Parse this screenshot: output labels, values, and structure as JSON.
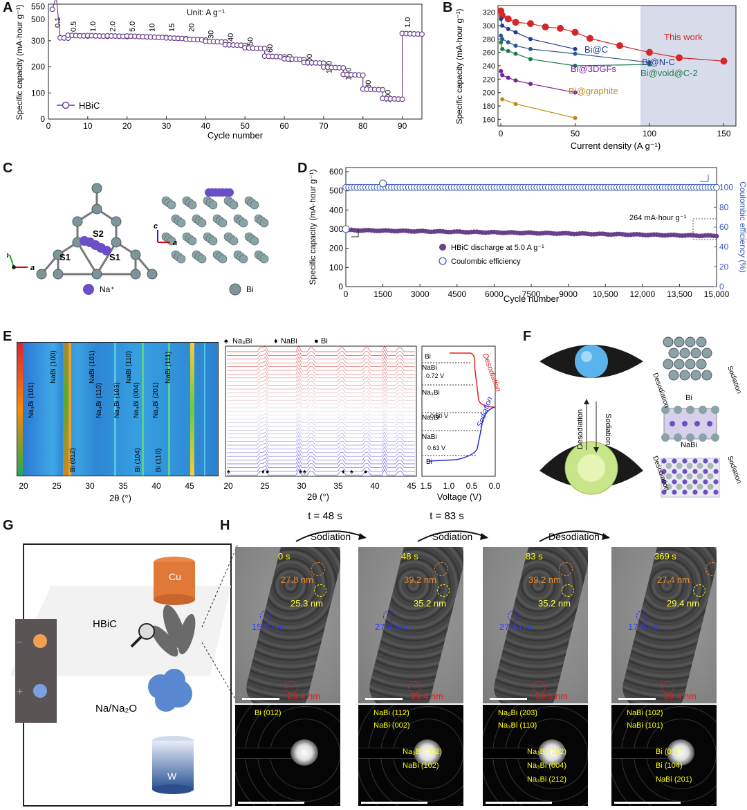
{
  "panels": {
    "A": {
      "label": "A",
      "unit": "Unit: A g⁻¹",
      "ylabel": "Specific capacity (mA·hour g⁻¹)",
      "xlabel": "Cycle number",
      "legend": "HBiC",
      "rates": [
        "0.1",
        "0.5",
        "1.0",
        "2.0",
        "5.0",
        "10",
        "15",
        "20",
        "30",
        "40",
        "50",
        "60",
        "80",
        "100",
        "120",
        "150",
        "180",
        "200",
        "1.0"
      ],
      "yticks": [
        "0",
        "100",
        "200",
        "300",
        "500",
        "550"
      ],
      "xticks": [
        "0",
        "10",
        "20",
        "30",
        "40",
        "50",
        "60",
        "70",
        "80",
        "90"
      ]
    },
    "B": {
      "label": "B",
      "ylabel": "Specific capacity (mA·hour g⁻¹)",
      "xlabel": "Current density (A g⁻¹)",
      "xticks": [
        "0",
        "50",
        "100",
        "150"
      ],
      "yticks": [
        "160",
        "180",
        "200",
        "220",
        "240",
        "260",
        "280",
        "300",
        "320"
      ],
      "series_labels": [
        "This work",
        "Bi@C",
        "Bi@N-C",
        "Bi@3DGFs",
        "Bi@void@C-2",
        "Bi@graphite"
      ]
    },
    "C": {
      "label": "C",
      "site_labels": [
        "S2",
        "S1",
        "S1"
      ],
      "legend_na": "Na⁺",
      "legend_bi": "Bi",
      "axis_b": "b",
      "axis_a": "a",
      "axis_c": "c",
      "axis_a2": "a"
    },
    "D": {
      "label": "D",
      "ylabel": "Specific capacity (mA·hour g⁻¹)",
      "y2label": "Coulombic efficiency (%)",
      "xlabel": "Cycle number",
      "annotation": "264 mA·hour g⁻¹",
      "legend1": "HBiC discharge at 5.0 A g⁻¹",
      "legend2": "Coulombic efficiency",
      "xticks": [
        "0",
        "1500",
        "3000",
        "4500",
        "6000",
        "7500",
        "9000",
        "10,500",
        "12,000",
        "13,500",
        "15,000"
      ],
      "yticks": [
        "0",
        "100",
        "200",
        "300",
        "400",
        "500",
        "600"
      ],
      "y2ticks": [
        "0",
        "20",
        "40",
        "60",
        "80",
        "100"
      ]
    },
    "E": {
      "label": "E",
      "map_labels": [
        "Na₃Bi (101)",
        "NaBi (100)",
        "NaBi (101)",
        "Na₃Bi (110)",
        "Na₃Bi (103)",
        "NaBi (110)",
        "Na₃Bi (004)",
        "Na₃Bi (201)",
        "NaBi (111)",
        "Bi (012)",
        "Bi (104)",
        "Bi (110)"
      ],
      "legend_top": [
        "Na₃Bi",
        "NaBi",
        "Bi"
      ],
      "xticks_map": [
        "20",
        "25",
        "30",
        "35",
        "40",
        "45"
      ],
      "xticks_xrd": [
        "20",
        "25",
        "30",
        "35",
        "40",
        "45"
      ],
      "xticks_v": [
        "1.5",
        "1.0",
        "0.5",
        "0.0"
      ],
      "xlabel_2theta": "2θ (°)",
      "xlabel_v": "Voltage (V)",
      "phase_labels": [
        "Bi",
        "NaBi",
        "Na₃Bi",
        "Na₃Bi",
        "NaBi",
        "Bi"
      ],
      "voltages": [
        "0.72 V",
        "0.50 V",
        "0.63 V"
      ],
      "desodiation": "Desodiation",
      "sodiation": "Sodiation"
    },
    "F": {
      "label": "F",
      "desodiation": "Desodiation",
      "sodiation": "Sodiation",
      "bi": "Bi",
      "nabi": "NaBi"
    },
    "G": {
      "label": "G",
      "cu": "Cu",
      "hbic": "HBiC",
      "na": "Na/Na₂O",
      "w": "W",
      "minus": "−",
      "plus": "+"
    },
    "H": {
      "label": "H",
      "arrows": [
        {
          "t": "t = 48 s",
          "label": "Sodiation"
        },
        {
          "t": "t = 83 s",
          "label": "Sodiation"
        },
        {
          "t": "",
          "label": "Desodiation"
        }
      ],
      "frames": [
        {
          "time": "0 s",
          "orange": "27.8 nm",
          "yellow": "25.3 nm",
          "blue": "15.7 nm",
          "red": "29.4 nm",
          "saed": [
            "Bi (012)"
          ]
        },
        {
          "time": "48 s",
          "orange": "39.2 nm",
          "yellow": "35.2 nm",
          "blue": "27.4 nm",
          "red": "29.4 nm",
          "saed": [
            "NaBi (112)",
            "NaBi (002)",
            "Na₃Bi (002)",
            "NaBi (102)"
          ]
        },
        {
          "time": "83 s",
          "orange": "39.2 nm",
          "yellow": "35.2 nm",
          "blue": "27.4 nm",
          "red": "33.3 nm",
          "saed": [
            "Na₃Bi (203)",
            "Na₃Bi (110)",
            "Na₃Bi (102)",
            "Na₃Bi (004)",
            "Na₃Bi (212)"
          ]
        },
        {
          "time": "369 s",
          "orange": "27.4 nm",
          "yellow": "29.4 nm",
          "blue": "17.6 nm",
          "red": "29.4 nm",
          "saed": [
            "NaBi (102)",
            "NaBi (101)",
            "Bi (012)",
            "Bi (104)",
            "NaBi (201)"
          ]
        }
      ]
    }
  },
  "chart_data": [
    {
      "type": "line",
      "panel": "A",
      "xlabel": "Cycle number",
      "ylabel": "Specific capacity (mA·hour g⁻¹)",
      "xlim": [
        0,
        95
      ],
      "series": [
        {
          "name": "HBiC",
          "x": [
            1,
            2,
            3,
            5,
            10,
            15,
            20,
            25,
            30,
            35,
            40,
            45,
            50,
            55,
            60,
            65,
            70,
            75,
            80,
            85,
            90,
            95
          ],
          "y": [
            540,
            470,
            310,
            315,
            318,
            316,
            315,
            312,
            310,
            305,
            300,
            290,
            275,
            265,
            240,
            230,
            215,
            200,
            170,
            110,
            75,
            325
          ]
        }
      ]
    },
    {
      "type": "line",
      "panel": "B",
      "xlabel": "Current density (A g⁻¹)",
      "ylabel": "Specific capacity (mA·hour g⁻¹)",
      "xlim": [
        0,
        150
      ],
      "ylim": [
        150,
        330
      ],
      "series": [
        {
          "name": "This work",
          "x": [
            0.1,
            1,
            5,
            10,
            20,
            30,
            40,
            50,
            60,
            80,
            100,
            120,
            150
          ],
          "y": [
            322,
            315,
            310,
            305,
            303,
            298,
            296,
            290,
            281,
            270,
            260,
            252,
            247
          ]
        },
        {
          "name": "Bi@C",
          "x": [
            0.1,
            1,
            5,
            10,
            20,
            50
          ],
          "y": [
            310,
            300,
            295,
            290,
            280,
            265
          ]
        },
        {
          "name": "Bi@N-C",
          "x": [
            0.1,
            1,
            5,
            10,
            20,
            50,
            100
          ],
          "y": [
            285,
            280,
            275,
            270,
            265,
            258,
            245
          ]
        },
        {
          "name": "Bi@void@C-2",
          "x": [
            0.1,
            1,
            5,
            10,
            20,
            50,
            100
          ],
          "y": [
            275,
            265,
            262,
            258,
            250,
            240,
            242
          ]
        },
        {
          "name": "Bi@3DGFs",
          "x": [
            0.1,
            1,
            5,
            10,
            20,
            50
          ],
          "y": [
            232,
            226,
            222,
            218,
            213,
            200
          ]
        },
        {
          "name": "Bi@graphite",
          "x": [
            1,
            10,
            50
          ],
          "y": [
            190,
            183,
            162
          ]
        }
      ]
    },
    {
      "type": "scatter",
      "panel": "D",
      "xlabel": "Cycle number",
      "xlim": [
        0,
        15000
      ],
      "ylim": [
        0,
        600
      ],
      "series": [
        {
          "name": "HBiC discharge at 5.0 A g⁻¹",
          "x": [
            0,
            1500,
            3000,
            4500,
            6000,
            7500,
            9000,
            10500,
            12000,
            13500,
            15000
          ],
          "y": [
            290,
            295,
            294,
            292,
            290,
            285,
            280,
            278,
            275,
            270,
            264
          ]
        },
        {
          "name": "Coulombic efficiency",
          "x": [
            0,
            1500,
            3000,
            4500,
            6000,
            7500,
            9000,
            10500,
            12000,
            13500,
            15000
          ],
          "y": [
            100,
            100,
            100,
            100,
            100,
            100,
            100,
            100,
            100,
            100,
            100
          ]
        }
      ]
    }
  ]
}
